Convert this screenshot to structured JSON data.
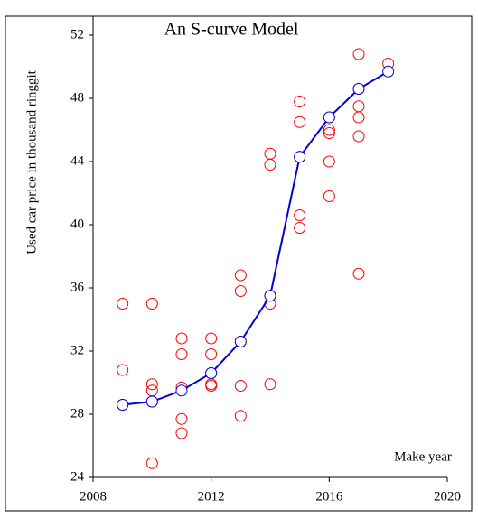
{
  "chart_data": {
    "type": "scatter",
    "title": "An S-curve Model",
    "x_label": "Make year",
    "y_label": "Used car price in thousand ringgit",
    "xlim": [
      2008,
      2020
    ],
    "xticks": [
      2008,
      2012,
      2016,
      2020
    ],
    "ylim": [
      24,
      52
    ],
    "yticks": [
      24,
      28,
      32,
      36,
      40,
      44,
      48,
      52
    ],
    "series": [
      {
        "color": "#ff0000",
        "x": [
          2009,
          2009,
          2009,
          2010,
          2010,
          2010,
          2010,
          2010,
          2011,
          2011,
          2011,
          2011,
          2011,
          2012,
          2012,
          2012,
          2012,
          2012,
          2013,
          2013,
          2013,
          2013,
          2013,
          2014,
          2014,
          2014,
          2014,
          2014,
          2015,
          2015,
          2015,
          2015,
          2015,
          2016,
          2016,
          2016,
          2016,
          2016,
          2017,
          2017,
          2017,
          2017,
          2017,
          2017,
          2018
        ],
        "values": [
          35.0,
          30.8,
          28.6,
          35.0,
          29.9,
          29.5,
          28.8,
          24.9,
          32.8,
          31.8,
          29.7,
          27.7,
          26.8,
          32.8,
          31.8,
          30.6,
          29.9,
          29.8,
          36.8,
          35.8,
          32.6,
          29.8,
          27.9,
          44.5,
          43.8,
          35.5,
          35.0,
          29.9,
          47.8,
          46.5,
          44.3,
          40.6,
          39.8,
          46.8,
          46.0,
          45.8,
          44.0,
          41.8,
          50.8,
          48.6,
          47.5,
          46.8,
          45.6,
          36.9,
          50.2
        ]
      },
      {
        "color": "#0000dd",
        "line": true,
        "marker_fill": "#ffffff",
        "x": [
          2009,
          2010,
          2011,
          2012,
          2013,
          2014,
          2015,
          2016,
          2017,
          2018
        ],
        "values": [
          28.6,
          28.8,
          29.5,
          30.6,
          32.6,
          35.5,
          44.3,
          46.8,
          48.6,
          49.7
        ]
      }
    ]
  }
}
